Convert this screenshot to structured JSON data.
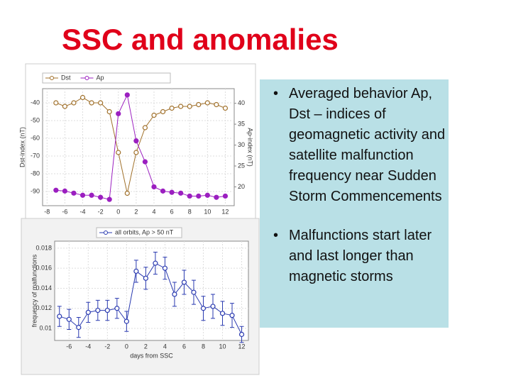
{
  "title": "SSC and anomalies",
  "bullets": [
    "Averaged behavior Ap, Dst – indices of geomagnetic activity and satellite malfunction frequency near Sudden Storm Commencements",
    "Malfunctions start later and last longer than magnetic storms"
  ],
  "chart_data": [
    {
      "type": "line",
      "xlabel": "days from SSC",
      "ylabel": "Dst-index (nT)",
      "y2label": "Ap-index (nT)",
      "grid": true,
      "x": [
        -7,
        -6,
        -5,
        -4,
        -3,
        -2,
        -1,
        0,
        1,
        2,
        3,
        4,
        5,
        6,
        7,
        8,
        9,
        10,
        11,
        12
      ],
      "xlim": [
        -8.5,
        13
      ],
      "xticks": [
        -8,
        -6,
        -4,
        -2,
        0,
        2,
        4,
        6,
        8,
        10,
        12
      ],
      "ylim": [
        -98,
        -32
      ],
      "yticks": [
        -90,
        -80,
        -70,
        -60,
        -50,
        -40
      ],
      "y2lim": [
        15.5,
        43.5
      ],
      "y2ticks": [
        20,
        25,
        30,
        35,
        40
      ],
      "series": [
        {
          "name": "Dst",
          "color": "#a0702a",
          "values": [
            -40,
            -42,
            -40,
            -37,
            -40,
            -40,
            -45,
            -68,
            -91,
            -68,
            -54,
            -47,
            -45,
            -43,
            -42,
            -42,
            -41,
            -40,
            -41,
            -43
          ]
        },
        {
          "name": "Ap",
          "color": "#9b1fc0",
          "axis": "y2",
          "values": [
            19.2,
            19,
            18.5,
            18,
            18,
            17.5,
            17,
            37.5,
            42,
            31,
            26,
            20,
            19,
            18.7,
            18.5,
            17.8,
            17.8,
            18,
            17.5,
            17.8
          ]
        }
      ]
    },
    {
      "type": "line",
      "xlabel": "days from SSC",
      "ylabel": "frequency of malfunctions",
      "grid": true,
      "x": [
        -7,
        -6,
        -5,
        -4,
        -3,
        -2,
        -1,
        0,
        1,
        2,
        3,
        4,
        5,
        6,
        7,
        8,
        9,
        10,
        11,
        12
      ],
      "xlim": [
        -7.5,
        12.7
      ],
      "xticks": [
        -6,
        -4,
        -2,
        0,
        2,
        4,
        6,
        8,
        10,
        12
      ],
      "ylim": [
        0.0088,
        0.0187
      ],
      "yticks": [
        0.01,
        0.012,
        0.014,
        0.016,
        0.018
      ],
      "series": [
        {
          "name": "all orbits, Ap > 50 nT",
          "color": "#2a3ab0",
          "values": [
            0.0112,
            0.0109,
            0.0101,
            0.0116,
            0.0118,
            0.0118,
            0.012,
            0.0107,
            0.0157,
            0.015,
            0.0165,
            0.016,
            0.0134,
            0.0146,
            0.0136,
            0.012,
            0.0122,
            0.0115,
            0.0113,
            0.0094
          ],
          "errors": [
            0.001,
            0.001,
            0.001,
            0.001,
            0.001,
            0.001,
            0.001,
            0.001,
            0.0011,
            0.0011,
            0.0011,
            0.0011,
            0.0012,
            0.0012,
            0.0012,
            0.0012,
            0.0012,
            0.0012,
            0.0012,
            0.0008
          ]
        }
      ]
    }
  ]
}
